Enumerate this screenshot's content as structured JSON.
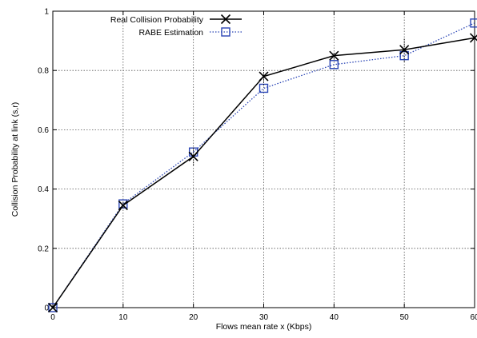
{
  "chart_data": {
    "type": "line",
    "title": "",
    "xlabel": "Flows mean rate x (Kbps)",
    "ylabel": "Collision Probability at link (s,r)",
    "xlim": [
      0,
      60
    ],
    "ylim": [
      0,
      1
    ],
    "x_ticks": [
      "0",
      "10",
      "20",
      "30",
      "40",
      "50",
      "60"
    ],
    "y_ticks": [
      "0",
      "0.2",
      "0.4",
      "0.6",
      "0.8",
      "1"
    ],
    "grid": true,
    "legend_position": "top-left",
    "x": [
      0,
      10,
      20,
      30,
      40,
      50,
      60
    ],
    "series": [
      {
        "name": "Real Collision Probability",
        "values": [
          0.0,
          0.345,
          0.51,
          0.78,
          0.85,
          0.87,
          0.91
        ],
        "color": "#000000",
        "marker": "x",
        "line_style": "solid",
        "error": [
          0.0,
          0.01,
          0.03,
          0.03,
          0.01,
          0.04,
          0.0
        ]
      },
      {
        "name": "RABE Estimation",
        "values": [
          0.0,
          0.35,
          0.525,
          0.74,
          0.82,
          0.85,
          0.96
        ],
        "color": "#2a45b5",
        "marker": "square",
        "line_style": "dotted"
      }
    ]
  }
}
